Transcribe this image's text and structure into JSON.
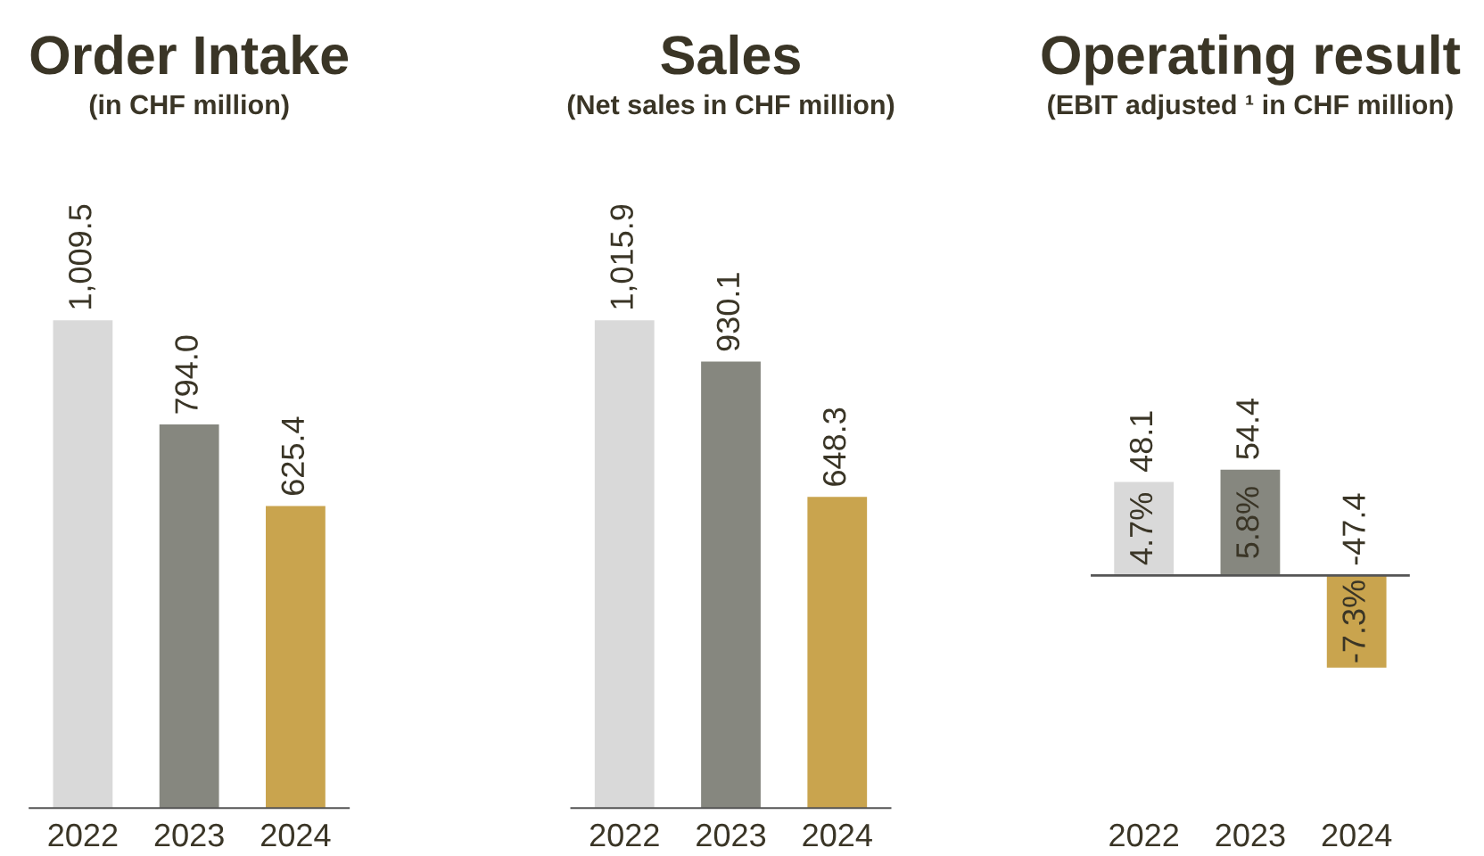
{
  "chart_data": [
    {
      "type": "bar",
      "title": "Order Intake",
      "subtitle": "(in CHF million)",
      "categories": [
        "2022",
        "2023",
        "2024"
      ],
      "values": [
        1009.5,
        794.0,
        625.4
      ],
      "colors": [
        "#d9d9d9",
        "#86877f",
        "#c9a44e"
      ],
      "value_labels": [
        "1,009.5",
        "794.0",
        "625.4"
      ]
    },
    {
      "type": "bar",
      "title": "Sales",
      "subtitle": "(Net sales in CHF million)",
      "categories": [
        "2022",
        "2023",
        "2024"
      ],
      "values": [
        1015.9,
        930.1,
        648.3
      ],
      "colors": [
        "#d9d9d9",
        "#86877f",
        "#c9a44e"
      ],
      "value_labels": [
        "1,015.9",
        "930.1",
        "648.3"
      ]
    },
    {
      "type": "bar",
      "title": "Operating result",
      "subtitle": "(EBIT adjusted ¹ in CHF million)",
      "categories": [
        "2022",
        "2023",
        "2024"
      ],
      "values": [
        48.1,
        54.4,
        -47.4
      ],
      "colors": [
        "#d9d9d9",
        "#86877f",
        "#c9a44e"
      ],
      "value_labels": [
        "48.1",
        "54.4",
        "-47.4"
      ],
      "ref_lines": [
        {
          "axis": "y",
          "value": 0,
          "color": "#555555"
        }
      ],
      "annotations": [
        "4.7%",
        "5.8%",
        "-7.3%"
      ]
    }
  ]
}
